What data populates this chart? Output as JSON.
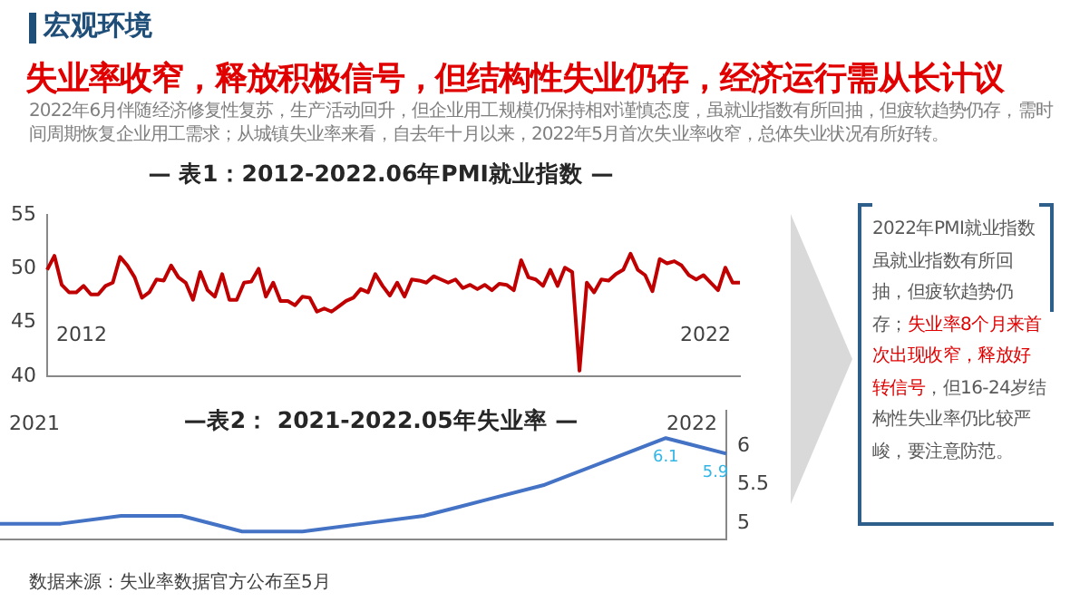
{
  "chart_data": [
    {
      "type": "other",
      "title": "宏观环境",
      "subtitle": "失业率收窄，释放积极信号，但结构性失业仍存，经济运行需从长计议",
      "annotations": [
        "2022年6月伴随经济修复性复苏，生产活动回升，但企业用工规模仍保持相对谨慎态度，虽就业指数有所回抽，但疲软趋势仍存，需时间周期恢复企业用工需求；从城镇失业率来看，自去年十月以来，2022年5月首次失业率收窄，总体失业状况有所好转。"
      ]
    },
    {
      "type": "line",
      "title": "— 表1：2012-2022.06年PMI就业指数 —",
      "annotations": [
        "2012",
        "2022"
      ],
      "ylim": [
        40,
        55
      ],
      "yticks": [
        40,
        45,
        50,
        55
      ],
      "categories": [
        null,
        null,
        null,
        null,
        null,
        null,
        null,
        null,
        null,
        null,
        null,
        null,
        null,
        null,
        null,
        null,
        null,
        null,
        null,
        null,
        null,
        null,
        null,
        null,
        null,
        null,
        null,
        null,
        null,
        null,
        null,
        null,
        null,
        null,
        null,
        null,
        null,
        null,
        null,
        null,
        null,
        null,
        null,
        null,
        null,
        null,
        null,
        null,
        null,
        null,
        null,
        null,
        null,
        null,
        null,
        null,
        null,
        null,
        null,
        null,
        null,
        null,
        null,
        null,
        null,
        null,
        null,
        null,
        null,
        null,
        null,
        null,
        null,
        null,
        null,
        null,
        null,
        null,
        null,
        null,
        null,
        null,
        null,
        null,
        null,
        null,
        null,
        null,
        null,
        null,
        null,
        null,
        null,
        null,
        null,
        null
      ],
      "series": [
        {
          "color": "#c00000",
          "values": [
            49.9,
            51.2,
            48.5,
            47.8,
            47.8,
            48.4,
            47.6,
            47.6,
            48.4,
            48.7,
            51.1,
            50.3,
            49.2,
            47.3,
            47.8,
            49.0,
            48.9,
            50.3,
            49.2,
            48.7,
            47.1,
            49.7,
            48.0,
            47.4,
            49.5,
            47.1,
            47.1,
            48.7,
            48.8,
            50.0,
            47.4,
            48.7,
            47.0,
            47.0,
            46.6,
            47.4,
            47.3,
            46.0,
            46.3,
            46.0,
            46.5,
            47.0,
            47.3,
            48.1,
            47.8,
            49.5,
            48.4,
            47.5,
            48.7,
            47.4,
            49.0,
            48.9,
            48.7,
            49.3,
            49.0,
            48.7,
            49.0,
            48.2,
            48.5,
            48.1,
            48.5,
            48.0,
            48.6,
            48.5,
            48.0,
            50.8,
            49.2,
            49.0,
            48.4,
            49.9,
            48.4,
            50.1,
            49.7,
            40.5,
            48.7,
            47.8,
            49.0,
            48.9,
            49.5,
            49.9,
            51.4,
            49.9,
            49.4,
            47.9,
            50.9,
            50.5,
            50.7,
            50.3,
            49.4,
            49.0,
            49.4,
            48.7,
            48.0,
            50.1,
            48.7,
            48.7
          ]
        }
      ]
    },
    {
      "type": "line",
      "title": "—表2： 2021-2022.05年失业率 —",
      "annotations": [
        "2021",
        "2022",
        "数据来源：失业率数据官方公布至5月"
      ],
      "ylim": [
        4.8,
        6.45
      ],
      "yticks": [
        5,
        5.5,
        6
      ],
      "categories": [
        null,
        null,
        null,
        null,
        null,
        null,
        null,
        null,
        null,
        null,
        null,
        null,
        null
      ],
      "series": [
        {
          "color": "#4472c4",
          "values": [
            5.0,
            5.0,
            5.1,
            5.1,
            4.9,
            4.9,
            5.0,
            5.1,
            5.3,
            5.5,
            5.8,
            6.1,
            5.9
          ],
          "value_labels": [
            null,
            null,
            null,
            null,
            null,
            null,
            null,
            null,
            null,
            null,
            null,
            "6.1",
            "5.9"
          ]
        }
      ]
    },
    {
      "type": "other",
      "annotations": [
        "2022年PMI就业指数虽就业指数有所回抽，但疲软趋势仍存；",
        "失业率8个月来首次出现收窄，释放好转信号",
        "，但16-24岁结构性失业率仍比较严峻，要注意防范。"
      ],
      "colors": [
        "#595959",
        "#e00000",
        "#595959"
      ]
    }
  ]
}
